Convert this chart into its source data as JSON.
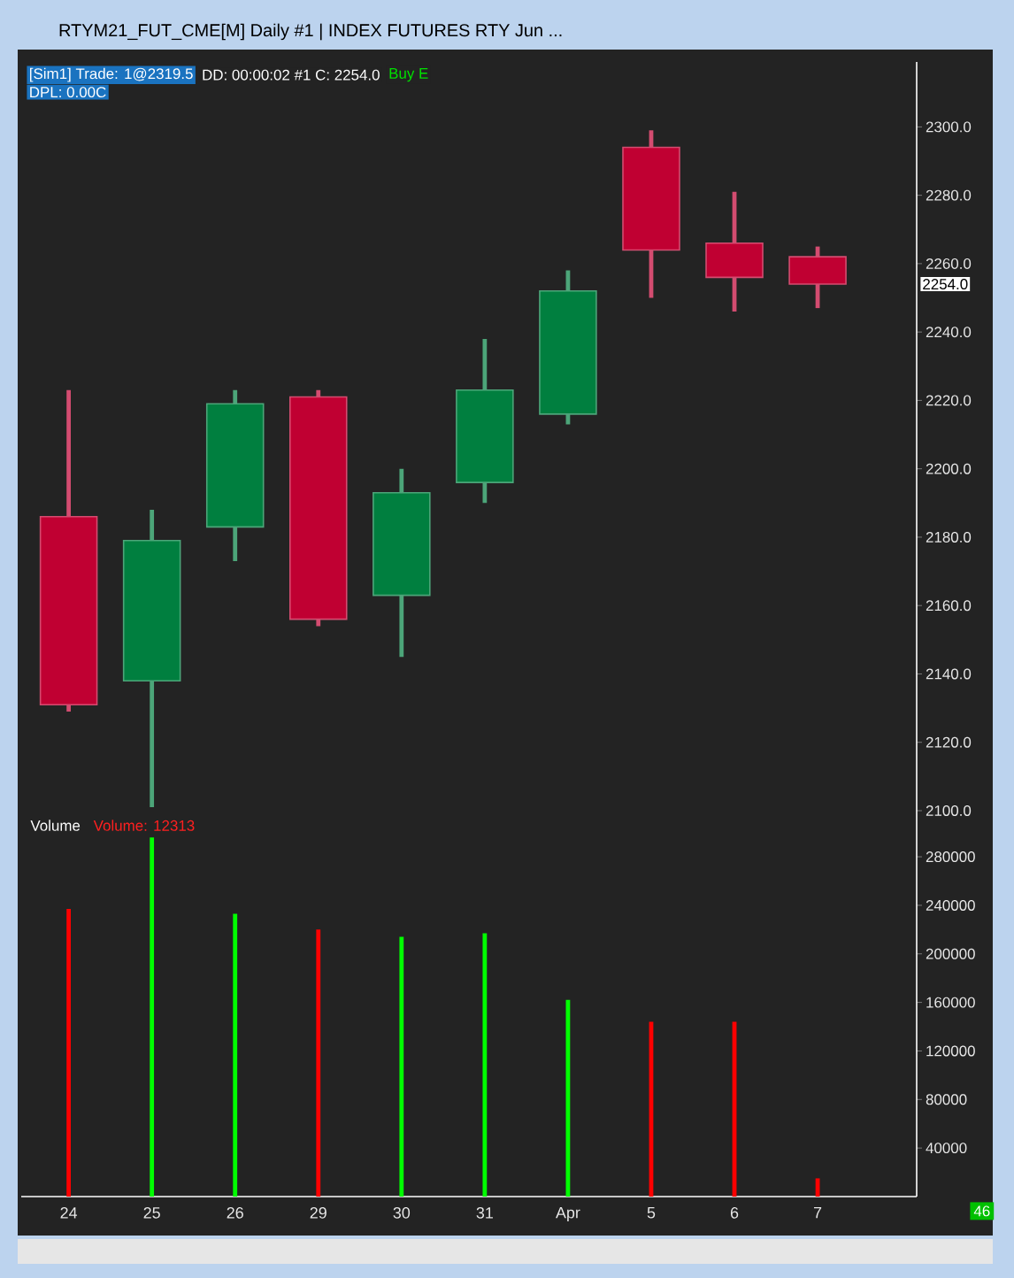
{
  "chart_data": [
    {
      "type": "candlestick",
      "title": "RTYM21_FUT_CME[M]  Daily  #1 | INDEX FUTURES RTY Jun ...",
      "ohlc": [
        [
          2186,
          2223,
          2129,
          2131
        ],
        [
          2138,
          2188,
          2101,
          2179
        ],
        [
          2183,
          2223,
          2173,
          2219
        ],
        [
          2221,
          2223,
          2154,
          2156
        ],
        [
          2163,
          2200,
          2145,
          2193
        ],
        [
          2196,
          2238,
          2190,
          2223
        ],
        [
          2216,
          2258,
          2213,
          2252
        ],
        [
          2294,
          2299,
          2250,
          2264
        ],
        [
          2266,
          2281,
          2246,
          2256
        ],
        [
          2262,
          2265,
          2247,
          2254
        ]
      ],
      "colors": [
        "#c00032",
        "#007f3f",
        "#007f3f",
        "#c00032",
        "#007f3f",
        "#007f3f",
        "#007f3f",
        "#c00032",
        "#c00032",
        "#c00032"
      ],
      "ylim": [
        2100,
        2319
      ],
      "yticks": [
        {
          "value": 2100,
          "label": "2100.0"
        },
        {
          "value": 2120,
          "label": "2120.0"
        },
        {
          "value": 2140,
          "label": "2140.0"
        },
        {
          "value": 2160,
          "label": "2160.0"
        },
        {
          "value": 2180,
          "label": "2180.0"
        },
        {
          "value": 2200,
          "label": "2200.0"
        },
        {
          "value": 2220,
          "label": "2220.0"
        },
        {
          "value": 2240,
          "label": "2240.0"
        },
        {
          "value": 2260,
          "label": "2260.0"
        },
        {
          "value": 2280,
          "label": "2280.0"
        },
        {
          "value": 2300,
          "label": "2300.0"
        }
      ],
      "tick_labels": "y",
      "annotations": [
        "[Sim1]  Trade: 1@2319.5",
        "DD: 00:00:02 #1 C: 2254.0",
        "Buy E",
        "DPL: 0.00C",
        "2254.0"
      ]
    },
    {
      "type": "bar",
      "title": "Volume",
      "categories": [
        "24",
        "25",
        "26",
        "29",
        "30",
        "31",
        "Apr",
        "5",
        "6",
        "7"
      ],
      "values": [
        237000,
        296000,
        233000,
        220000,
        214000,
        217000,
        162000,
        144000,
        144000,
        15000
      ],
      "colors": [
        "#ff0000",
        "#00ff00",
        "#00ff00",
        "#ff0000",
        "#00ff00",
        "#00ff00",
        "#00ff00",
        "#ff0000",
        "#ff0000",
        "#ff0000"
      ],
      "ylim": [
        0,
        318000
      ],
      "yticks": [
        40000,
        80000,
        120000,
        160000,
        200000,
        240000,
        280000
      ],
      "annotations": [
        "Volume: 12313",
        "46"
      ]
    }
  ]
}
